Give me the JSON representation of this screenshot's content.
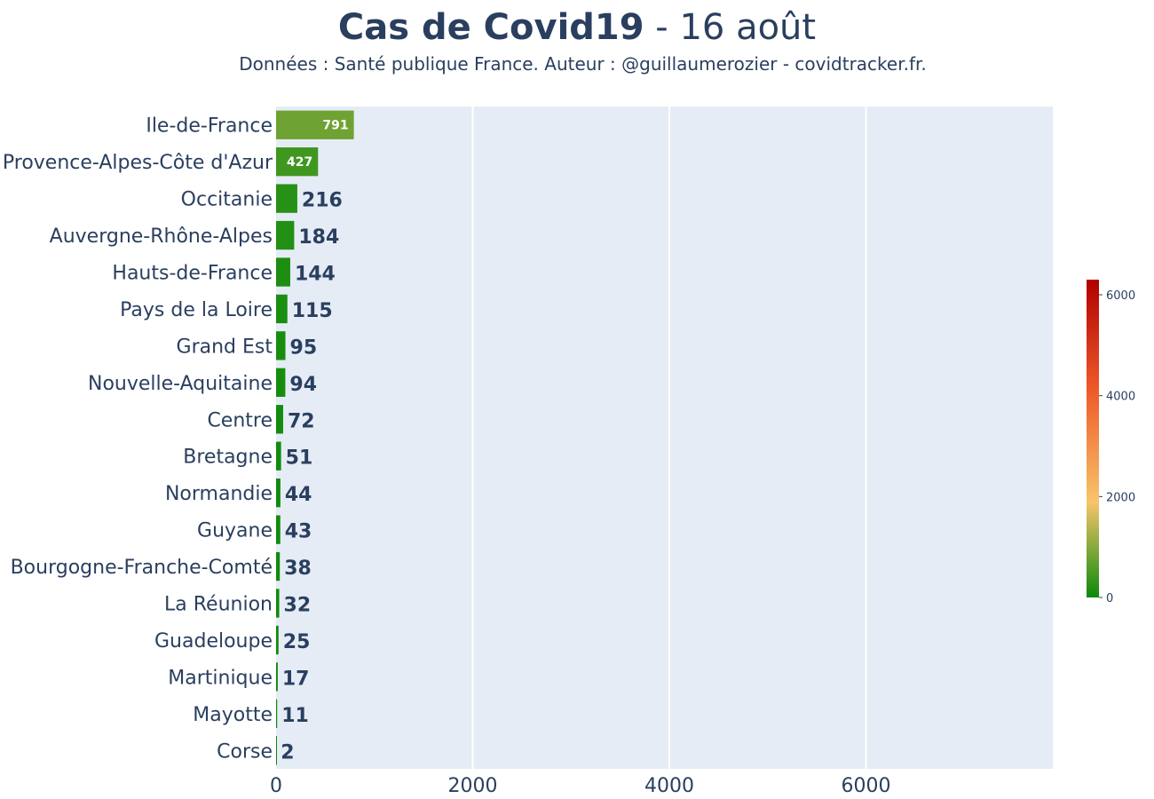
{
  "chart_data": {
    "type": "bar",
    "orientation": "horizontal",
    "title_bold": "Cas de Covid19",
    "title_rest": " - 16 août",
    "subtitle": "Données : Santé publique France. Auteur : @guillaumerozier - covidtracker.fr.",
    "categories": [
      "Ile-de-France",
      "Provence-Alpes-Côte d'Azur",
      "Occitanie",
      "Auvergne-Rhône-Alpes",
      "Hauts-de-France",
      "Pays de la Loire",
      "Grand Est",
      "Nouvelle-Aquitaine",
      "Centre",
      "Bretagne",
      "Normandie",
      "Guyane",
      "Bourgogne-Franche-Comté",
      "La Réunion",
      "Guadeloupe",
      "Martinique",
      "Mayotte",
      "Corse"
    ],
    "values": [
      791,
      427,
      216,
      184,
      144,
      115,
      95,
      94,
      72,
      51,
      44,
      43,
      38,
      32,
      25,
      17,
      11,
      2
    ],
    "xlim": [
      0,
      7900
    ],
    "xticks": [
      0,
      2000,
      4000,
      6000
    ],
    "grid": true,
    "colorscale": {
      "range": [
        0,
        6300
      ],
      "ticks": [
        0,
        2000,
        4000,
        6000
      ],
      "colors": [
        "#0b8a0b",
        "#f7c56a",
        "#ef5a2b",
        "#b00000"
      ]
    },
    "colors": {
      "plot_bg": "#e5ecf6",
      "grid": "#ffffff",
      "text": "#2a3f5f"
    }
  }
}
